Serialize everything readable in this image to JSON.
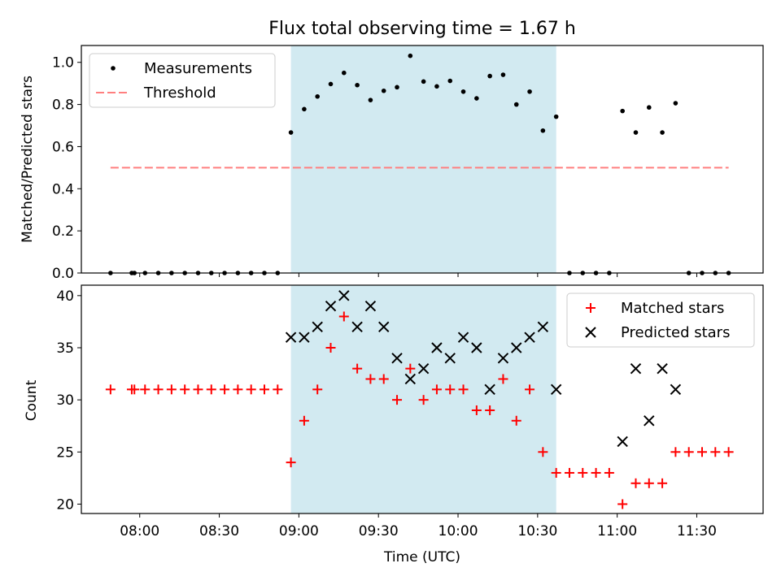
{
  "chart_data": [
    {
      "type": "scatter",
      "title": "Flux total observing time = 1.67 h",
      "xlabel": "",
      "ylabel": "Matched/Predicted stars",
      "ylim": [
        0,
        1.08
      ],
      "yticks": [
        0.0,
        0.2,
        0.4,
        0.6,
        0.8,
        1.0
      ],
      "shaded_x_range": [
        "08:57",
        "10:37"
      ],
      "threshold": {
        "name": "Threshold",
        "value": 0.5,
        "x_range": [
          "07:49",
          "11:42"
        ],
        "color": "#ff7f7f",
        "style": "dashed"
      },
      "legend": [
        "Measurements",
        "Threshold"
      ],
      "legend_position": "upper left",
      "series": [
        {
          "name": "Measurements",
          "color": "#000000",
          "marker": "dot",
          "points": [
            [
              "07:49",
              0.0
            ],
            [
              "07:57",
              0.0
            ],
            [
              "07:58",
              0.0
            ],
            [
              "08:02",
              0.0
            ],
            [
              "08:07",
              0.0
            ],
            [
              "08:12",
              0.0
            ],
            [
              "08:17",
              0.0
            ],
            [
              "08:22",
              0.0
            ],
            [
              "08:27",
              0.0
            ],
            [
              "08:32",
              0.0
            ],
            [
              "08:37",
              0.0
            ],
            [
              "08:42",
              0.0
            ],
            [
              "08:47",
              0.0
            ],
            [
              "08:52",
              0.0
            ],
            [
              "08:57",
              0.667
            ],
            [
              "09:02",
              0.778
            ],
            [
              "09:07",
              0.838
            ],
            [
              "09:12",
              0.897
            ],
            [
              "09:17",
              0.95
            ],
            [
              "09:22",
              0.892
            ],
            [
              "09:27",
              0.821
            ],
            [
              "09:32",
              0.865
            ],
            [
              "09:37",
              0.882
            ],
            [
              "09:42",
              1.031
            ],
            [
              "09:47",
              0.909
            ],
            [
              "09:52",
              0.886
            ],
            [
              "09:57",
              0.912
            ],
            [
              "10:02",
              0.861
            ],
            [
              "10:07",
              0.829
            ],
            [
              "10:12",
              0.935
            ],
            [
              "10:17",
              0.941
            ],
            [
              "10:22",
              0.8
            ],
            [
              "10:27",
              0.861
            ],
            [
              "10:32",
              0.676
            ],
            [
              "10:37",
              0.742
            ],
            [
              "10:42",
              0.0
            ],
            [
              "10:47",
              0.0
            ],
            [
              "10:52",
              0.0
            ],
            [
              "10:57",
              0.0
            ],
            [
              "11:02",
              0.769
            ],
            [
              "11:07",
              0.667
            ],
            [
              "11:12",
              0.786
            ],
            [
              "11:17",
              0.667
            ],
            [
              "11:22",
              0.806
            ],
            [
              "11:27",
              0.0
            ],
            [
              "11:32",
              0.0
            ],
            [
              "11:37",
              0.0
            ],
            [
              "11:42",
              0.0
            ]
          ]
        }
      ]
    },
    {
      "type": "scatter",
      "title": "",
      "xlabel": "Time (UTC)",
      "ylabel": "Count",
      "ylim": [
        19.1,
        41.0
      ],
      "yticks": [
        20,
        25,
        30,
        35,
        40
      ],
      "xticks": [
        "08:00",
        "08:30",
        "09:00",
        "09:30",
        "10:00",
        "10:30",
        "11:00",
        "11:30"
      ],
      "shaded_x_range": [
        "08:57",
        "10:37"
      ],
      "legend": [
        "Matched stars",
        "Predicted stars"
      ],
      "legend_position": "upper right",
      "series": [
        {
          "name": "Matched stars",
          "color": "#ff0000",
          "marker": "plus",
          "points": [
            [
              "07:49",
              31
            ],
            [
              "07:57",
              31
            ],
            [
              "07:58",
              31
            ],
            [
              "08:02",
              31
            ],
            [
              "08:07",
              31
            ],
            [
              "08:12",
              31
            ],
            [
              "08:17",
              31
            ],
            [
              "08:22",
              31
            ],
            [
              "08:27",
              31
            ],
            [
              "08:32",
              31
            ],
            [
              "08:37",
              31
            ],
            [
              "08:42",
              31
            ],
            [
              "08:47",
              31
            ],
            [
              "08:52",
              31
            ],
            [
              "08:57",
              24
            ],
            [
              "09:02",
              28
            ],
            [
              "09:07",
              31
            ],
            [
              "09:12",
              35
            ],
            [
              "09:17",
              38
            ],
            [
              "09:22",
              33
            ],
            [
              "09:27",
              32
            ],
            [
              "09:32",
              32
            ],
            [
              "09:37",
              30
            ],
            [
              "09:42",
              33
            ],
            [
              "09:47",
              30
            ],
            [
              "09:52",
              31
            ],
            [
              "09:57",
              31
            ],
            [
              "10:02",
              31
            ],
            [
              "10:07",
              29
            ],
            [
              "10:12",
              29
            ],
            [
              "10:17",
              32
            ],
            [
              "10:22",
              28
            ],
            [
              "10:27",
              31
            ],
            [
              "10:32",
              25
            ],
            [
              "10:37",
              23
            ],
            [
              "10:42",
              23
            ],
            [
              "10:47",
              23
            ],
            [
              "10:52",
              23
            ],
            [
              "10:57",
              23
            ],
            [
              "11:02",
              20
            ],
            [
              "11:07",
              22
            ],
            [
              "11:12",
              22
            ],
            [
              "11:17",
              22
            ],
            [
              "11:22",
              25
            ],
            [
              "11:27",
              25
            ],
            [
              "11:32",
              25
            ],
            [
              "11:37",
              25
            ],
            [
              "11:42",
              25
            ]
          ]
        },
        {
          "name": "Predicted stars",
          "color": "#000000",
          "marker": "x",
          "points": [
            [
              "08:57",
              36
            ],
            [
              "09:02",
              36
            ],
            [
              "09:07",
              37
            ],
            [
              "09:12",
              39
            ],
            [
              "09:17",
              40
            ],
            [
              "09:22",
              37
            ],
            [
              "09:27",
              39
            ],
            [
              "09:32",
              37
            ],
            [
              "09:37",
              34
            ],
            [
              "09:42",
              32
            ],
            [
              "09:47",
              33
            ],
            [
              "09:52",
              35
            ],
            [
              "09:57",
              34
            ],
            [
              "10:02",
              36
            ],
            [
              "10:07",
              35
            ],
            [
              "10:12",
              31
            ],
            [
              "10:17",
              34
            ],
            [
              "10:22",
              35
            ],
            [
              "10:27",
              36
            ],
            [
              "10:32",
              37
            ],
            [
              "10:37",
              31
            ],
            [
              "11:02",
              26
            ],
            [
              "11:07",
              33
            ],
            [
              "11:12",
              28
            ],
            [
              "11:17",
              33
            ],
            [
              "11:22",
              31
            ]
          ]
        }
      ]
    }
  ],
  "colors": {
    "shade": "#add8e6",
    "threshold": "#ff7f7f",
    "matched": "#ff0000",
    "predicted": "#000000"
  }
}
